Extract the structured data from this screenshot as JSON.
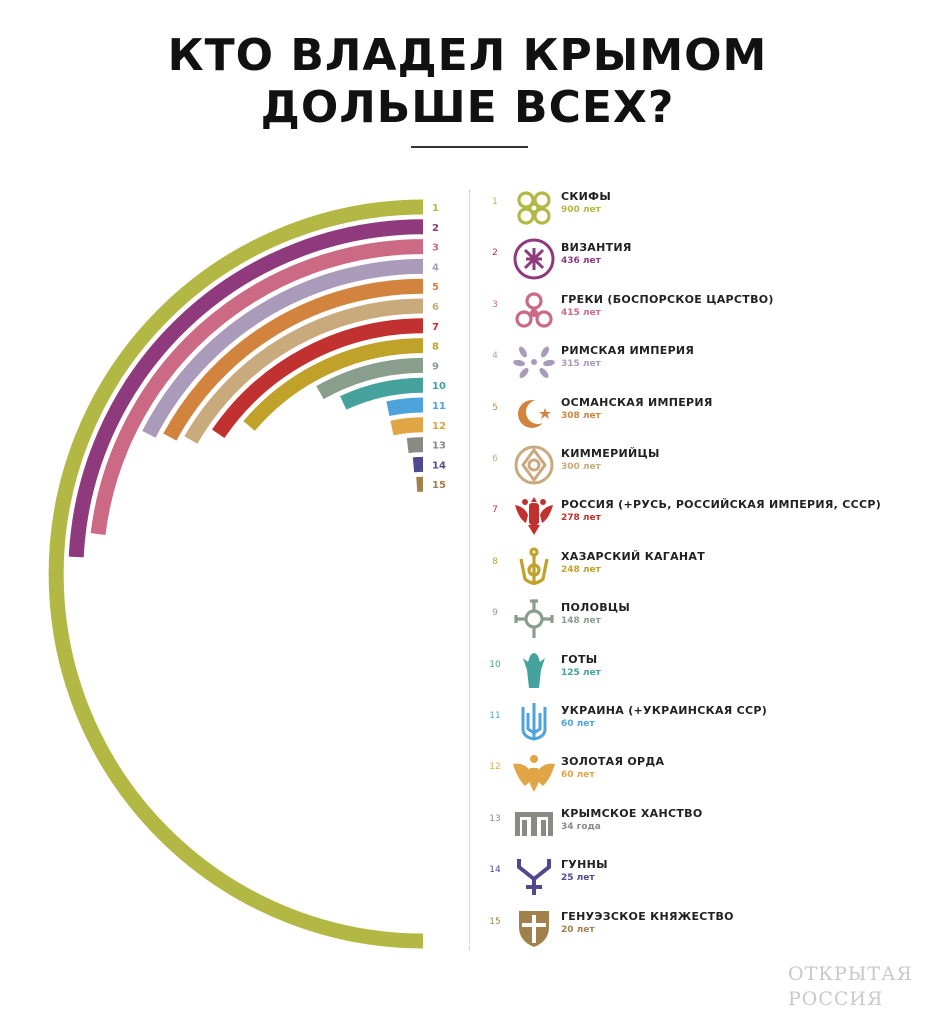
{
  "title": {
    "line1": "КТО ВЛАДЕЛ КРЫМОМ",
    "line2": "ДОЛЬШЕ ВСЕХ?"
  },
  "watermark": {
    "line1": "ОТКРЫТАЯ",
    "line2": "РОССИЯ"
  },
  "chart_data": {
    "type": "bar",
    "title": "КТО ВЛАДЕЛ КРЫМОМ ДОЛЬШЕ ВСЕХ?",
    "max_value": 900,
    "categories": [
      "СКИФЫ",
      "ВИЗАНТИЯ",
      "ГРЕКИ (БОСПОРСКОЕ ЦАРСТВО)",
      "РИМСКАЯ ИМПЕРИЯ",
      "ОСМАНСКАЯ ИМПЕРИЯ",
      "КИММЕРИЙЦЫ",
      "РОССИЯ (+РУСЬ, РОССИЙСКАЯ ИМПЕРИЯ, СССР)",
      "ХАЗАРСКИЙ КАГАНАТ",
      "ПОЛОВЦЫ",
      "ГОТЫ",
      "УКРАИНА (+УКРАИНСКАЯ ССР)",
      "ЗОЛОТАЯ ОРДА",
      "КРЫМСКОЕ ХАНСТВО",
      "ГУННЫ",
      "ГЕНУЭЗСКОЕ КНЯЖЕСТВО"
    ],
    "values": [
      900,
      436,
      415,
      315,
      308,
      300,
      278,
      248,
      148,
      125,
      60,
      60,
      34,
      25,
      20
    ],
    "ranks": [
      "1",
      "2",
      "3",
      "4",
      "5",
      "6",
      "7",
      "8",
      "9",
      "10",
      "11",
      "12",
      "13",
      "14",
      "15"
    ],
    "value_labels": [
      "900 лет",
      "436 лет",
      "415 лет",
      "315 лет",
      "308 лет",
      "300 лет",
      "278 лет",
      "248 лет",
      "148 лет",
      "125 лет",
      "60 лет",
      "60 лет",
      "34 года",
      "25 лет",
      "20 лет"
    ],
    "colors": [
      "#b3b845",
      "#8e3a7c",
      "#cc6a86",
      "#aa9bbb",
      "#d2843e",
      "#c9aa7d",
      "#c0312f",
      "#c0a22b",
      "#8a9e8e",
      "#45a29c",
      "#4ea3dc",
      "#e0a545",
      "#8a8a84",
      "#4f4a8e",
      "#a0814c"
    ],
    "icons": [
      "scythian-spiral-icon",
      "byzantine-monogram-icon",
      "greek-triskelion-icon",
      "roman-laurel-icon",
      "crescent-star-icon",
      "cimmerian-knot-icon",
      "double-headed-eagle-icon",
      "khazar-tamga-icon",
      "cuman-cross-icon",
      "gothic-eagle-icon",
      "trident-icon",
      "golden-horde-eagle-icon",
      "crimean-tamga-icon",
      "hun-tamga-icon",
      "genoese-shield-icon"
    ]
  }
}
